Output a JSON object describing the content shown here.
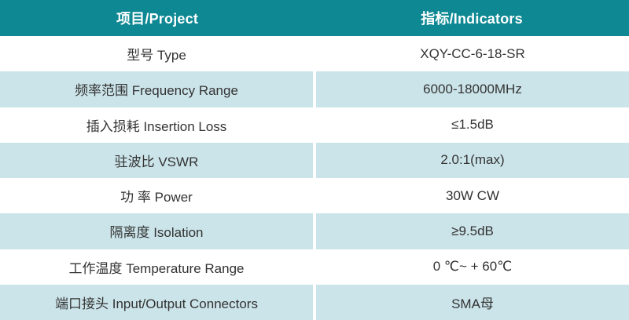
{
  "table": {
    "header": {
      "project_label": "项目/Project",
      "indicators_label": "指标/Indicators"
    },
    "rows": [
      {
        "project": "型号 Type",
        "indicator": "XQY-CC-6-18-SR"
      },
      {
        "project": "频率范围 Frequency Range",
        "indicator": "6000-18000MHz"
      },
      {
        "project": "插入损耗 Insertion Loss",
        "indicator": "≤1.5dB"
      },
      {
        "project": "驻波比 VSWR",
        "indicator": "2.0:1(max)"
      },
      {
        "project": "功 率 Power",
        "indicator": "30W CW"
      },
      {
        "project": "隔离度 Isolation",
        "indicator": "≥9.5dB"
      },
      {
        "project": "工作温度 Temperature Range",
        "indicator": "0 ℃~ + 60℃"
      },
      {
        "project": "端口接头 Input/Output Connectors",
        "indicator": "SMA母"
      }
    ]
  },
  "colors": {
    "header_bg": "#0e8994",
    "header_text": "#ffffff",
    "row_alt_bg": "#cbe4e9",
    "row_bg": "#ffffff",
    "body_text": "#333333"
  }
}
